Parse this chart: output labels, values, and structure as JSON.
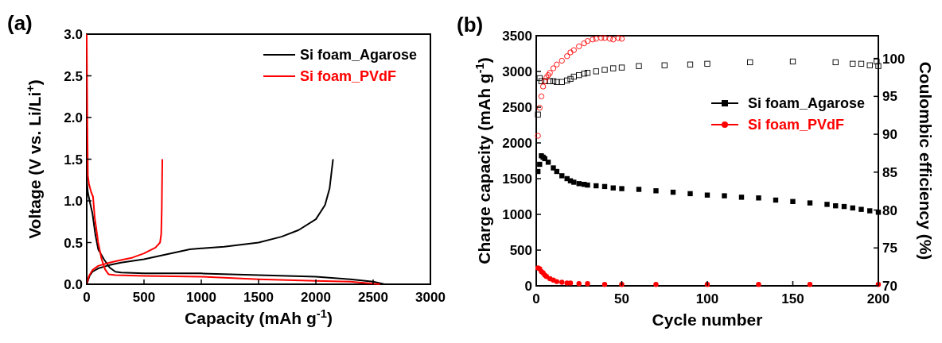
{
  "chart_data": [
    {
      "type": "line",
      "title": "(a)",
      "xlabel": "Capacity (mAh g$^{-1}$)",
      "ylabel": "Voltage (V vs. Li/Li$^{+}$)",
      "xlim": [
        0,
        3000
      ],
      "xticks": [
        0,
        500,
        1000,
        1500,
        2000,
        2500,
        3000
      ],
      "ylim": [
        0,
        3.0
      ],
      "yticks": [
        {
          "value": 0,
          "label": "0.0"
        },
        0.5,
        {
          "value": 1,
          "label": "1.0"
        },
        1.5,
        {
          "value": 2,
          "label": "2.0"
        },
        2.5,
        {
          "value": 3,
          "label": "3.0"
        }
      ],
      "grid": false,
      "legend": "top right",
      "series": [
        {
          "name": "Si foam_Agarose",
          "color": "#000000",
          "x": [
            0,
            10,
            25,
            50,
            75,
            100,
            150,
            200,
            250,
            300,
            500,
            1000,
            1500,
            2000,
            2300,
            2500,
            2600
          ],
          "values": [
            1.25,
            1.1,
            1.0,
            0.85,
            0.6,
            0.42,
            0.3,
            0.2,
            0.15,
            0.14,
            0.13,
            0.13,
            0.11,
            0.09,
            0.06,
            0.03,
            0
          ]
        },
        {
          "color": "#000000",
          "x": [
            0,
            25,
            50,
            100,
            200,
            300,
            500,
            700,
            900,
            1000,
            1200,
            1500,
            1700,
            1850,
            2000,
            2080,
            2120,
            2150
          ],
          "values": [
            0,
            0.1,
            0.15,
            0.19,
            0.23,
            0.26,
            0.3,
            0.36,
            0.42,
            0.43,
            0.45,
            0.5,
            0.57,
            0.65,
            0.78,
            0.95,
            1.15,
            1.5
          ]
        },
        {
          "name": "Si foam_PVdF",
          "color": "#ff0000",
          "x": [
            0,
            5,
            10,
            20,
            40,
            55,
            70,
            100,
            130,
            160,
            190,
            250,
            500,
            1000,
            1500,
            2000,
            2300,
            2560
          ],
          "values": [
            3.0,
            2.0,
            1.3,
            1.2,
            1.1,
            1.05,
            0.8,
            0.5,
            0.3,
            0.18,
            0.12,
            0.11,
            0.1,
            0.09,
            0.06,
            0.04,
            0.03,
            0
          ]
        },
        {
          "color": "#ff0000",
          "x": [
            0,
            20,
            50,
            100,
            200,
            300,
            400,
            500,
            600,
            640,
            650,
            655,
            660
          ],
          "values": [
            0,
            0.1,
            0.17,
            0.22,
            0.26,
            0.29,
            0.32,
            0.37,
            0.44,
            0.5,
            0.6,
            0.9,
            1.5
          ]
        }
      ]
    },
    {
      "type": "scatter",
      "title": "(b)",
      "xlabel": "Cycle number",
      "ylabel": "Charge capacity (mAh g$^{-1}$)",
      "y2label": "Coulombic efficiency (%)",
      "xlim": [
        0,
        200
      ],
      "xticks": [
        0,
        50,
        100,
        150,
        200
      ],
      "ylim": [
        0,
        3500
      ],
      "yticks": [
        0,
        500,
        1000,
        1500,
        2000,
        2500,
        3000,
        3500
      ],
      "y2lim": [
        70,
        103
      ],
      "y2ticks": [
        70,
        75,
        80,
        85,
        90,
        95,
        100
      ],
      "grid": false,
      "legend": "right",
      "series": [
        {
          "name": "Si foam_Agarose",
          "color": "#000000",
          "marker": "square",
          "x": [
            1,
            2,
            3,
            4,
            5,
            7,
            10,
            12,
            15,
            18,
            20,
            22,
            25,
            28,
            30,
            35,
            40,
            45,
            50,
            60,
            70,
            80,
            90,
            100,
            110,
            120,
            130,
            140,
            150,
            160,
            170,
            175,
            180,
            185,
            190,
            195,
            200
          ],
          "values": [
            1600,
            1700,
            1820,
            1800,
            1780,
            1730,
            1650,
            1600,
            1540,
            1500,
            1470,
            1450,
            1430,
            1420,
            1410,
            1400,
            1390,
            1370,
            1360,
            1350,
            1330,
            1310,
            1290,
            1270,
            1260,
            1240,
            1230,
            1200,
            1180,
            1160,
            1140,
            1120,
            1110,
            1090,
            1070,
            1050,
            1030
          ]
        },
        {
          "name": "Si foam_PVdF",
          "color": "#ff0000",
          "marker": "circle",
          "x": [
            1,
            2,
            3,
            4,
            5,
            6,
            8,
            10,
            12,
            15,
            18,
            20,
            25,
            30,
            40,
            50,
            70,
            100,
            130,
            160,
            200
          ],
          "values": [
            250,
            240,
            200,
            180,
            150,
            130,
            100,
            80,
            60,
            50,
            40,
            40,
            30,
            30,
            20,
            20,
            20,
            20,
            20,
            20,
            20
          ]
        },
        {
          "color": "#000000",
          "marker": "square",
          "axis": "y2",
          "x": [
            1,
            2,
            3,
            5,
            8,
            10,
            12,
            15,
            18,
            20,
            22,
            25,
            28,
            30,
            35,
            40,
            45,
            50,
            60,
            75,
            90,
            100,
            125,
            150,
            175,
            185,
            190,
            195,
            199,
            200
          ],
          "values": [
            92.6,
            97.4,
            97.0,
            97.0,
            97.0,
            97.0,
            96.9,
            96.9,
            97.1,
            97.3,
            97.6,
            97.8,
            98.0,
            98.1,
            98.3,
            98.5,
            98.7,
            98.8,
            99.0,
            99.1,
            99.2,
            99.3,
            99.5,
            99.6,
            99.5,
            99.3,
            99.3,
            99.1,
            99.6,
            99.0
          ]
        },
        {
          "color": "#ff0000",
          "marker": "circle",
          "axis": "y2",
          "x": [
            1,
            2,
            3,
            4,
            5,
            6,
            7,
            8,
            10,
            12,
            15,
            18,
            20,
            22,
            25,
            28,
            30,
            33,
            35,
            38,
            40,
            43,
            45,
            48,
            50
          ],
          "values": [
            89.8,
            93.5,
            95.0,
            96.3,
            97.0,
            97.5,
            97.8,
            98.1,
            98.7,
            99.2,
            99.7,
            100.3,
            100.8,
            101.1,
            101.6,
            102.0,
            102.3,
            102.5,
            102.6,
            102.7,
            102.7,
            102.6,
            102.5,
            102.7,
            102.6
          ]
        }
      ]
    }
  ]
}
